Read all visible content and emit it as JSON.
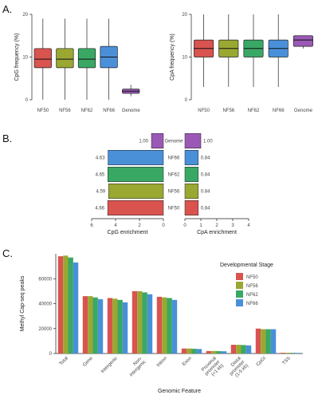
{
  "panels": {
    "a": "A.",
    "b": "B.",
    "c": "C."
  },
  "chart_data": [
    {
      "type": "box",
      "id": "cpg-freq",
      "ylabel": "CpG frequency (%)",
      "ylim": [
        0,
        20
      ],
      "yticks": [
        0,
        10,
        20
      ],
      "categories": [
        "NF50",
        "NF56",
        "NF62",
        "NF66",
        "Genome"
      ],
      "colors": [
        "#d9534f",
        "#9aa832",
        "#3aa865",
        "#4a90d9",
        "#9b59b6"
      ],
      "boxes": [
        {
          "whisker_low": 0,
          "q1": 7.5,
          "median": 9.5,
          "q3": 12,
          "whisker_high": 19
        },
        {
          "whisker_low": 0,
          "q1": 7.5,
          "median": 9.5,
          "q3": 12,
          "whisker_high": 19
        },
        {
          "whisker_low": 0,
          "q1": 7.5,
          "median": 9.5,
          "q3": 12,
          "whisker_high": 19
        },
        {
          "whisker_low": 0,
          "q1": 7.5,
          "median": 10,
          "q3": 12.5,
          "whisker_high": 19
        },
        {
          "whisker_low": 0.8,
          "q1": 1.5,
          "median": 2,
          "q3": 2.5,
          "whisker_high": 3.5
        }
      ]
    },
    {
      "type": "box",
      "id": "cpa-freq",
      "ylabel": "CpA frequency (%)",
      "ylim": [
        0,
        20
      ],
      "yticks": [
        0,
        10,
        20
      ],
      "categories": [
        "NF50",
        "NF56",
        "NF62",
        "NF66",
        "Genome"
      ],
      "colors": [
        "#d9534f",
        "#9aa832",
        "#3aa865",
        "#4a90d9",
        "#9b59b6"
      ],
      "boxes": [
        {
          "whisker_low": 3,
          "q1": 10,
          "median": 12,
          "q3": 14,
          "whisker_high": 20
        },
        {
          "whisker_low": 3,
          "q1": 10,
          "median": 12,
          "q3": 14,
          "whisker_high": 20
        },
        {
          "whisker_low": 3,
          "q1": 10,
          "median": 12,
          "q3": 14,
          "whisker_high": 20
        },
        {
          "whisker_low": 3,
          "q1": 10,
          "median": 12,
          "q3": 14,
          "whisker_high": 20
        },
        {
          "whisker_low": 12,
          "q1": 12.5,
          "median": 14,
          "q3": 15,
          "whisker_high": 15
        }
      ]
    },
    {
      "type": "bar",
      "id": "cpg-enrichment",
      "orientation": "horizontal-reversed",
      "xlabel": "CpG enrichment",
      "xlim": [
        0,
        6
      ],
      "xticks": [
        "6",
        "4",
        "2",
        "0"
      ],
      "categories": [
        "Genome",
        "NF66",
        "NF62",
        "NF56",
        "NF50"
      ],
      "values": [
        1.0,
        4.63,
        4.65,
        4.59,
        4.66
      ],
      "labels": [
        "1.00",
        "4.63",
        "4.65",
        "4.59",
        "4.66"
      ],
      "colors": [
        "#9b59b6",
        "#4a90d9",
        "#3aa865",
        "#9aa832",
        "#d9534f"
      ]
    },
    {
      "type": "bar",
      "id": "cpa-enrichment",
      "orientation": "horizontal",
      "xlabel": "CpA enrichment",
      "xlim": [
        0,
        4
      ],
      "xticks": [
        "0",
        "1",
        "2",
        "3",
        "4"
      ],
      "categories": [
        "Genome",
        "NF66",
        "NF62",
        "NF56",
        "NF50"
      ],
      "values": [
        1.0,
        0.84,
        0.84,
        0.84,
        0.84
      ],
      "labels": [
        "1.00",
        "0.84",
        "0.84",
        "0.84",
        "0.84"
      ],
      "colors": [
        "#9b59b6",
        "#4a90d9",
        "#3aa865",
        "#9aa832",
        "#d9534f"
      ]
    },
    {
      "type": "bar",
      "id": "methylcap-peaks",
      "xlabel": "Genomic Feature",
      "ylabel": "Methyl Cap-seq peaks",
      "ylim": [
        0,
        80000
      ],
      "yticks": [
        0,
        20000,
        40000,
        60000
      ],
      "categories": [
        "Total",
        "Gene",
        "Intergenic",
        "Non-intergenic",
        "Intron",
        "Exon",
        "Proximal promoter (<1 kb)",
        "Distal promoter (1-5 kb)",
        "CpGI",
        "TSS"
      ],
      "tick_labels": [
        [
          "Total"
        ],
        [
          "Gene"
        ],
        [
          "Intergenic"
        ],
        [
          "Non-",
          "intergenic"
        ],
        [
          "Intron"
        ],
        [
          "Exon"
        ],
        [
          "Proximal",
          "promoter",
          "(<1 kb)"
        ],
        [
          "Distal",
          "promoter",
          "(1-5 kb)"
        ],
        [
          "CpGI"
        ],
        [
          "TSS"
        ]
      ],
      "legend_title": "Developmental Stage",
      "series": [
        {
          "name": "NF50",
          "color": "#d9534f",
          "values": [
            78000,
            46000,
            44500,
            50000,
            45500,
            4000,
            2000,
            7000,
            20000,
            600
          ]
        },
        {
          "name": "NF56",
          "color": "#9aa832",
          "values": [
            78500,
            46000,
            44000,
            50000,
            45000,
            4000,
            2000,
            7000,
            19500,
            600
          ]
        },
        {
          "name": "NF62",
          "color": "#3aa865",
          "values": [
            77000,
            45000,
            43000,
            49000,
            44500,
            3800,
            1900,
            6800,
            19500,
            550
          ]
        },
        {
          "name": "NF66",
          "color": "#4a90d9",
          "values": [
            73000,
            43500,
            41000,
            47500,
            43000,
            3600,
            1800,
            6500,
            19500,
            500
          ]
        }
      ]
    }
  ]
}
